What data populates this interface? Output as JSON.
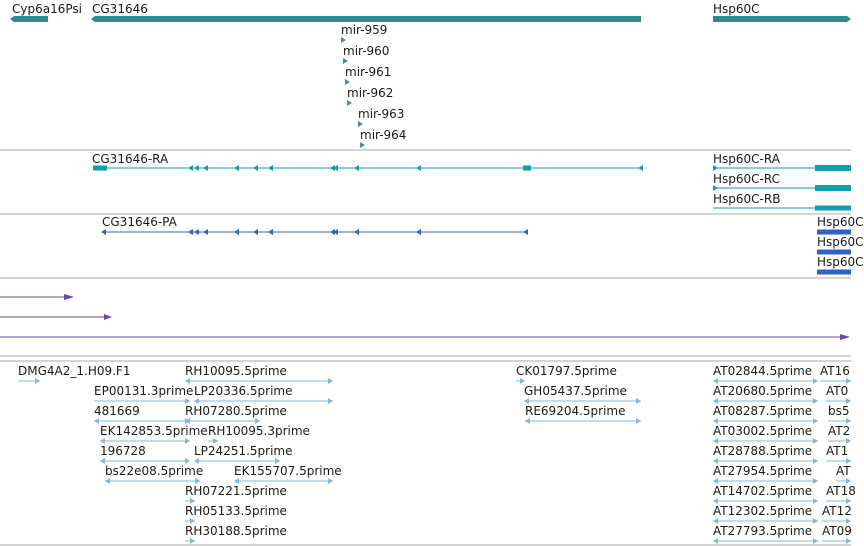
{
  "colors": {
    "gene": "#2e8b8b",
    "mirna": "#3d8fa6",
    "transcript": "#0f9db0",
    "cds": "#2e63c6",
    "other": "#6a48a8",
    "est": "#7fb8e0",
    "divider": "#a9a9a9",
    "text": "#1a1a1a"
  },
  "gene_track": {
    "genes": [
      {
        "name": "Cyp6a16Psi",
        "direction": "reverse"
      },
      {
        "name": "CG31646",
        "direction": "reverse"
      },
      {
        "name": "Hsp60C",
        "direction": "forward"
      }
    ],
    "mirnas": [
      {
        "name": "mir-959",
        "direction": "forward"
      },
      {
        "name": "mir-960",
        "direction": "forward"
      },
      {
        "name": "mir-961",
        "direction": "forward"
      },
      {
        "name": "mir-962",
        "direction": "forward"
      },
      {
        "name": "mir-963",
        "direction": "forward"
      },
      {
        "name": "mir-964",
        "direction": "forward"
      }
    ]
  },
  "transcript_track": {
    "transcripts": [
      {
        "name": "CG31646-RA",
        "direction": "reverse"
      },
      {
        "name": "Hsp60C-RA",
        "direction": "forward"
      },
      {
        "name": "Hsp60C-RC",
        "direction": "forward"
      },
      {
        "name": "Hsp60C-RB",
        "direction": "forward"
      }
    ]
  },
  "cds_track": {
    "cds": [
      {
        "name": "CG31646-PA",
        "direction": "reverse"
      },
      {
        "name": "Hsp60C",
        "direction": "forward"
      },
      {
        "name": "Hsp60C",
        "direction": "forward"
      },
      {
        "name": "Hsp60C",
        "direction": "forward"
      }
    ]
  },
  "est_track": {
    "ests": [
      "DMG4A2_1.H09.F1",
      "RH10095.5prime",
      "EP00131.3prime",
      "LP20336.5prime",
      "481669",
      "RH07280.5prime",
      "EK142853.5prime",
      "RH10095.3prime",
      "196728",
      "LP24251.5prime",
      "bs22e08.5prime",
      "EK155707.5prime",
      "RH07221.5prime",
      "RH05133.5prime",
      "RH30188.5prime",
      "CK01797.5prime",
      "GH05437.5prime",
      "RE69204.5prime",
      "AT02844.5prime",
      "AT16",
      "AT20680.5prime",
      "AT0",
      "AT08287.5prime",
      "bs5",
      "AT03002.5prime",
      "AT2",
      "AT28788.5prime",
      "AT1",
      "AT27954.5prime",
      "AT",
      "AT14702.5prime",
      "AT18",
      "AT12302.5prime",
      "AT12",
      "AT27793.5prime",
      "AT09"
    ]
  }
}
